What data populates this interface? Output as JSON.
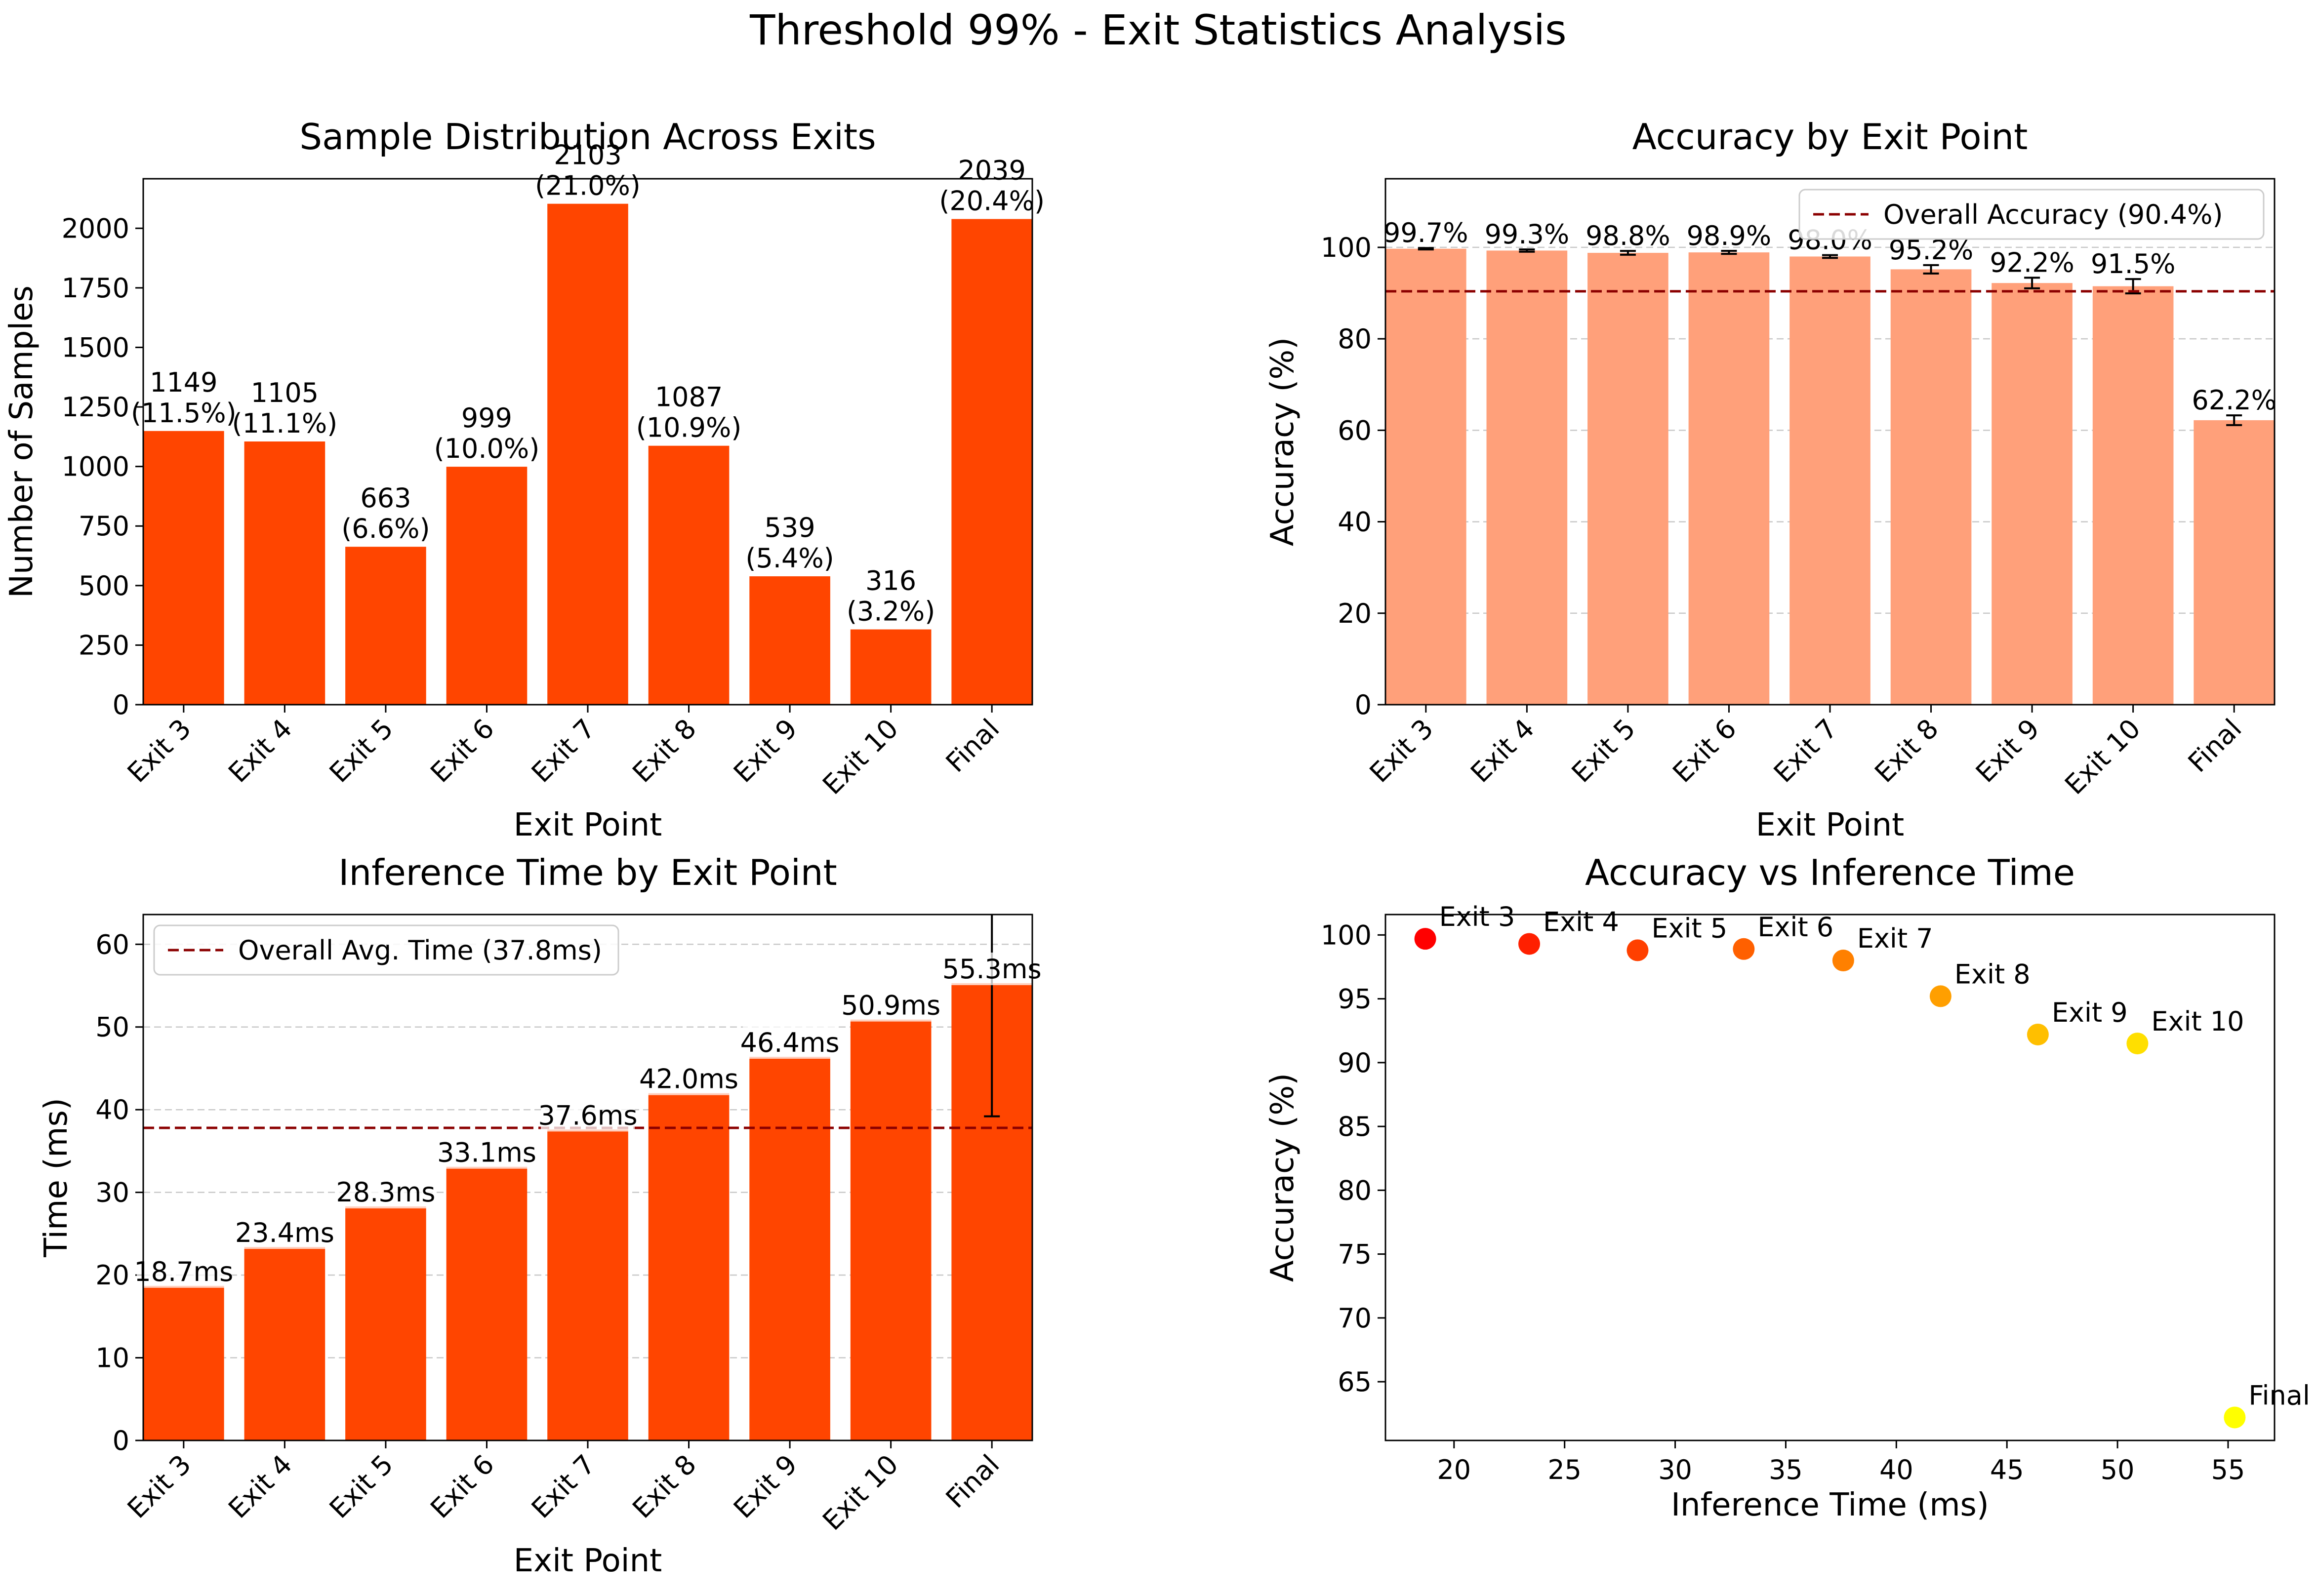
{
  "figure": {
    "suptitle": "Threshold 99% - Exit Statistics Analysis"
  },
  "colors": {
    "bar_orange": "#ff4500",
    "bar_salmon": "#ffa07a",
    "overall_line": "#8b0000",
    "grid": "#c8c8c8",
    "scatter_colormap": "autumn"
  },
  "chart_data": [
    {
      "id": "samples",
      "type": "bar",
      "title": "Sample Distribution Across Exits",
      "xlabel": "Exit Point",
      "ylabel": "Number of Samples",
      "categories": [
        "Exit 3",
        "Exit 4",
        "Exit 5",
        "Exit 6",
        "Exit 7",
        "Exit 8",
        "Exit 9",
        "Exit 10",
        "Final"
      ],
      "values": [
        1149,
        1105,
        663,
        999,
        2103,
        1087,
        539,
        316,
        2039
      ],
      "labels": [
        "1149\n(11.5%)",
        "1105\n(11.1%)",
        "663\n(6.6%)",
        "999\n(10.0%)",
        "2103\n(21.0%)",
        "1087\n(10.9%)",
        "539\n(5.4%)",
        "316\n(3.2%)",
        "2039\n(20.4%)"
      ],
      "ylim": [
        0,
        2208
      ],
      "yticks": [
        0,
        250,
        500,
        750,
        1000,
        1250,
        1500,
        1750,
        2000
      ],
      "grid": false
    },
    {
      "id": "accuracy",
      "type": "bar",
      "title": "Accuracy by Exit Point",
      "xlabel": "Exit Point",
      "ylabel": "Accuracy (%)",
      "categories": [
        "Exit 3",
        "Exit 4",
        "Exit 5",
        "Exit 6",
        "Exit 7",
        "Exit 8",
        "Exit 9",
        "Exit 10",
        "Final"
      ],
      "values": [
        99.7,
        99.3,
        98.8,
        98.9,
        98.0,
        95.2,
        92.2,
        91.5,
        62.2
      ],
      "errors": [
        0.16,
        0.25,
        0.42,
        0.33,
        0.31,
        0.92,
        1.16,
        1.57,
        1.07
      ],
      "labels": [
        "99.7%",
        "99.3%",
        "98.8%",
        "98.9%",
        "98.0%",
        "95.2%",
        "92.2%",
        "91.5%",
        "62.2%"
      ],
      "ylim": [
        0,
        115
      ],
      "yticks": [
        0,
        20,
        40,
        60,
        80,
        100
      ],
      "overall_value": 90.4,
      "legend": "Overall Accuracy (90.4%)",
      "legend_position": "upper right",
      "grid": true
    },
    {
      "id": "time",
      "type": "bar",
      "title": "Inference Time by Exit Point",
      "xlabel": "Exit Point",
      "ylabel": "Time (ms)",
      "categories": [
        "Exit 3",
        "Exit 4",
        "Exit 5",
        "Exit 6",
        "Exit 7",
        "Exit 8",
        "Exit 9",
        "Exit 10",
        "Final"
      ],
      "values": [
        18.7,
        23.4,
        28.3,
        33.1,
        37.6,
        42.0,
        46.4,
        50.9,
        55.3
      ],
      "labels": [
        "18.7ms",
        "23.4ms",
        "28.3ms",
        "33.1ms",
        "37.6ms",
        "42.0ms",
        "46.4ms",
        "50.9ms",
        "55.3ms"
      ],
      "error_bars": [
        {
          "category": "Final",
          "low": 39.2,
          "high": 63.6
        }
      ],
      "ylim": [
        0,
        63.6
      ],
      "yticks": [
        0,
        10,
        20,
        30,
        40,
        50,
        60
      ],
      "overall_value": 37.8,
      "legend": "Overall Avg. Time (37.8ms)",
      "legend_position": "upper left",
      "grid": true
    },
    {
      "id": "scatter",
      "type": "scatter",
      "title": "Accuracy vs Inference Time",
      "xlabel": "Inference Time (ms)",
      "ylabel": "Accuracy (%)",
      "points": [
        {
          "label": "Exit 3",
          "x": 18.7,
          "y": 99.7
        },
        {
          "label": "Exit 4",
          "x": 23.4,
          "y": 99.3
        },
        {
          "label": "Exit 5",
          "x": 28.3,
          "y": 98.8
        },
        {
          "label": "Exit 6",
          "x": 33.1,
          "y": 98.9
        },
        {
          "label": "Exit 7",
          "x": 37.6,
          "y": 98.0
        },
        {
          "label": "Exit 8",
          "x": 42.0,
          "y": 95.2
        },
        {
          "label": "Exit 9",
          "x": 46.4,
          "y": 92.2
        },
        {
          "label": "Exit 10",
          "x": 50.9,
          "y": 91.5
        },
        {
          "label": "Final",
          "x": 55.3,
          "y": 62.2
        }
      ],
      "point_colors": [
        "#ff0000",
        "#ff2000",
        "#ff4000",
        "#ff6000",
        "#ff8000",
        "#ff9f00",
        "#ffbf00",
        "#ffdf00",
        "#ffff00"
      ],
      "xlim": [
        16.9,
        57.1
      ],
      "ylim": [
        60.4,
        101.6
      ],
      "xticks": [
        20,
        25,
        30,
        35,
        40,
        45,
        50,
        55
      ],
      "yticks": [
        65,
        70,
        75,
        80,
        85,
        90,
        95,
        100
      ],
      "grid": false
    }
  ]
}
